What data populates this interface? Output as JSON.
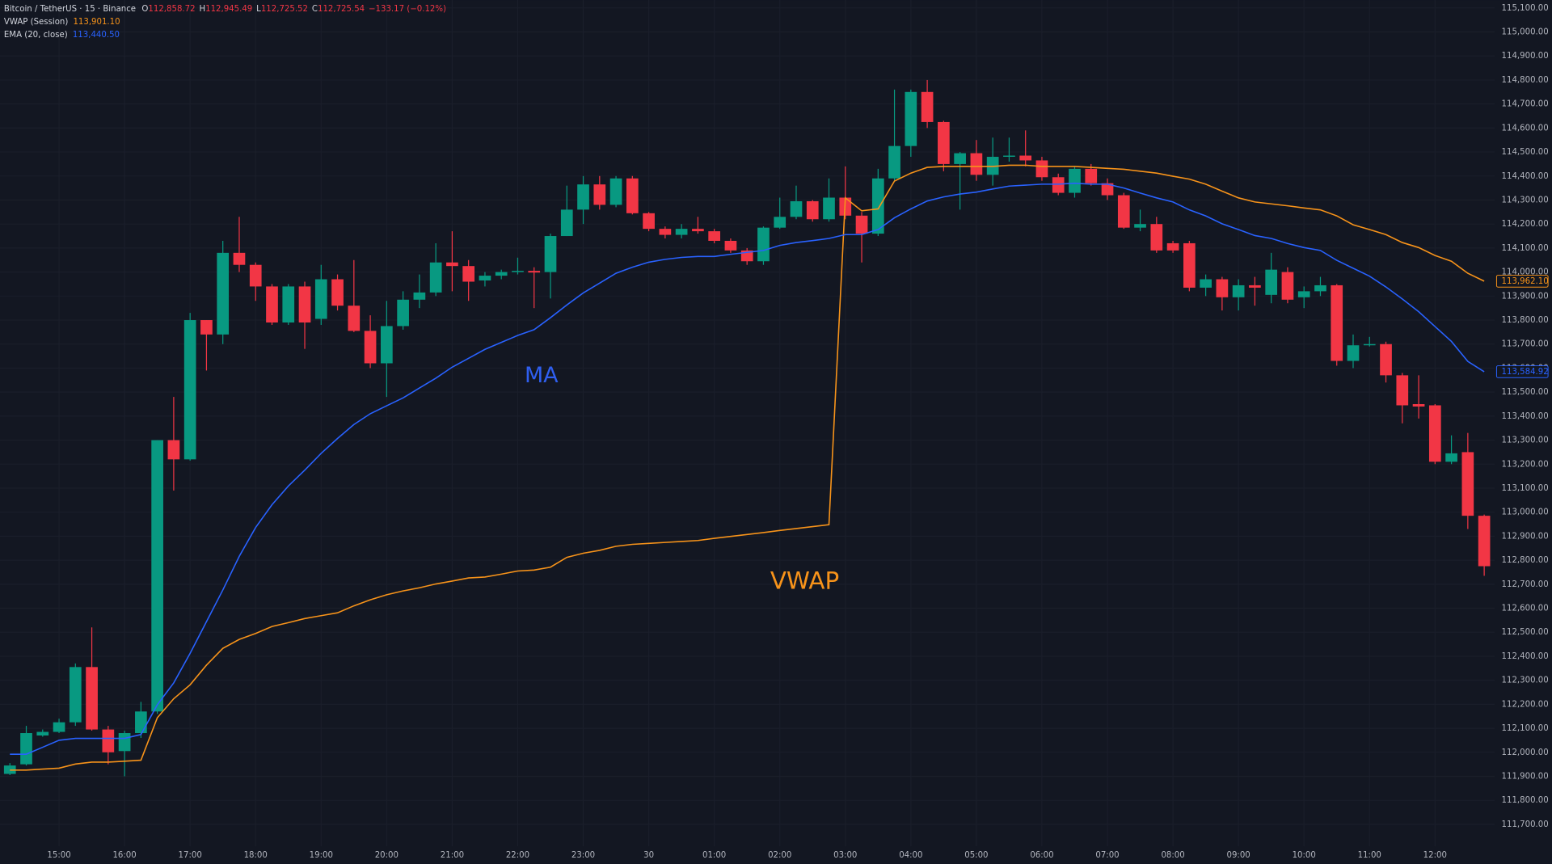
{
  "chart_data": {
    "type": "candlestick",
    "title": "Bitcoin / TetherUS · 15 · Binance",
    "ohlc": [
      {
        "key": "O",
        "value": "112,858.72"
      },
      {
        "key": "H",
        "value": "112,945.49"
      },
      {
        "key": "L",
        "value": "112,725.52"
      },
      {
        "key": "C",
        "value": "112,725.54"
      }
    ],
    "change": "−133.17 (−0.12%)",
    "up_color": "#089981",
    "down_color": "#f23645",
    "grid": true,
    "categories": [
      null,
      null,
      null,
      "15:00",
      null,
      null,
      null,
      "16:00",
      null,
      null,
      null,
      "17:00",
      null,
      null,
      null,
      "18:00",
      null,
      null,
      null,
      "19:00",
      null,
      null,
      null,
      "20:00",
      null,
      null,
      null,
      "21:00",
      null,
      null,
      null,
      "22:00",
      null,
      null,
      null,
      "23:00",
      null,
      null,
      null,
      "30",
      null,
      null,
      null,
      "01:00",
      null,
      null,
      null,
      "02:00",
      null,
      null,
      null,
      "03:00",
      null,
      null,
      null,
      "04:00",
      null,
      null,
      null,
      "05:00",
      null,
      null,
      null,
      "06:00",
      null,
      null,
      null,
      "07:00",
      null,
      null,
      null,
      "08:00",
      null,
      null,
      null,
      "09:00",
      null,
      null,
      null,
      "10:00",
      null,
      null,
      null,
      "11:00",
      null,
      null,
      null,
      "12:00",
      null,
      null,
      null
    ],
    "open": [
      111910,
      111950,
      112070,
      112085,
      112125,
      112355,
      112095,
      112005,
      112080,
      112170,
      113300,
      113220,
      113800,
      113740,
      114080,
      114030,
      113940,
      113790,
      113940,
      113805,
      113970,
      113860,
      113755,
      113620,
      113775,
      113885,
      113915,
      114040,
      114025,
      113965,
      113985,
      114000,
      114005,
      114000,
      114150,
      114260,
      114365,
      114280,
      114390,
      114245,
      114180,
      114155,
      114180,
      114170,
      114130,
      114090,
      114045,
      114185,
      114230,
      114295,
      114220,
      114310,
      114235,
      114160,
      114390,
      114525,
      114750,
      114625,
      114450,
      114495,
      114405,
      114480,
      114485,
      114465,
      114395,
      114330,
      114430,
      114370,
      114320,
      114185,
      114200,
      114120,
      114120,
      113935,
      113970,
      113895,
      113945,
      113905,
      114000,
      113895,
      113920,
      113945,
      113630,
      113695,
      113700,
      113570,
      113450,
      113445,
      113210,
      113250,
      112985
    ],
    "high": [
      111955,
      112110,
      112095,
      112140,
      112370,
      112520,
      112110,
      112090,
      112210,
      113300,
      113480,
      113830,
      113800,
      114130,
      114230,
      114040,
      113950,
      113950,
      113960,
      114030,
      113990,
      114050,
      113820,
      113880,
      113920,
      113990,
      114120,
      114170,
      114050,
      114000,
      114010,
      114060,
      114020,
      114160,
      114360,
      114400,
      114400,
      114400,
      114400,
      114250,
      114190,
      114200,
      114230,
      114180,
      114140,
      114100,
      114190,
      114310,
      114360,
      114300,
      114390,
      114440,
      114250,
      114430,
      114760,
      114760,
      114800,
      114630,
      114500,
      114550,
      114560,
      114560,
      114590,
      114480,
      114410,
      114440,
      114450,
      114390,
      114330,
      114260,
      114230,
      114130,
      114130,
      113990,
      113980,
      113970,
      113980,
      114080,
      114020,
      113940,
      113980,
      113950,
      113740,
      113730,
      113710,
      113580,
      113570,
      113450,
      113320,
      113330,
      112990
    ],
    "low": [
      111905,
      111945,
      112065,
      112080,
      112110,
      112090,
      111950,
      111900,
      112060,
      112160,
      113090,
      113215,
      113590,
      113700,
      114000,
      113880,
      113780,
      113780,
      113680,
      113780,
      113840,
      113750,
      113600,
      113480,
      113760,
      113850,
      113900,
      113920,
      113880,
      113940,
      113970,
      113990,
      113850,
      113890,
      114150,
      114200,
      114260,
      114270,
      114240,
      114170,
      114140,
      114140,
      114160,
      114120,
      114080,
      114030,
      114030,
      114180,
      114220,
      114210,
      114210,
      114220,
      114040,
      114150,
      114380,
      114480,
      114600,
      114420,
      114260,
      114380,
      114360,
      114460,
      114440,
      114380,
      114320,
      114310,
      114360,
      114300,
      114180,
      114170,
      114080,
      114080,
      113920,
      113900,
      113840,
      113840,
      113860,
      113870,
      113870,
      113850,
      113900,
      113610,
      113600,
      113690,
      113540,
      113370,
      113390,
      113200,
      113200,
      112930,
      112735
    ],
    "close": [
      111945,
      112080,
      112085,
      112125,
      112355,
      112095,
      112000,
      112080,
      112170,
      113300,
      113220,
      113800,
      113740,
      114080,
      114030,
      113940,
      113790,
      113940,
      113790,
      113970,
      113860,
      113755,
      113620,
      113775,
      113885,
      113915,
      114040,
      114025,
      113960,
      113985,
      114000,
      114005,
      113998,
      114150,
      114260,
      114365,
      114280,
      114390,
      114245,
      114180,
      114155,
      114180,
      114170,
      114130,
      114090,
      114045,
      114185,
      114230,
      114295,
      114220,
      114310,
      114235,
      114160,
      114390,
      114525,
      114750,
      114625,
      114450,
      114495,
      114405,
      114480,
      114485,
      114465,
      114395,
      114330,
      114430,
      114370,
      114320,
      114185,
      114200,
      114090,
      114090,
      113935,
      113970,
      113895,
      113945,
      113935,
      114010,
      113885,
      113920,
      113945,
      113630,
      113695,
      113700,
      113570,
      113445,
      113440,
      113210,
      113245,
      112985,
      112775
    ],
    "series": [
      {
        "name": "VWAP (Session)",
        "color": "#f7931a",
        "legend_value": "113,901.10",
        "last_label": "113,962.10",
        "values": [
          111926,
          111926,
          111930,
          111934,
          111951,
          111959,
          111959,
          111963,
          111967,
          112144,
          112223,
          112281,
          112363,
          112433,
          112470,
          112495,
          112524,
          112540,
          112557,
          112569,
          112581,
          112610,
          112635,
          112656,
          112672,
          112685,
          112701,
          112713,
          112726,
          112730,
          112742,
          112755,
          112759,
          112771,
          112812,
          112829,
          112841,
          112858,
          112866,
          112870,
          112874,
          112878,
          112882,
          112891,
          112899,
          112907,
          112915,
          112924,
          112932,
          112940,
          112948,
          114309,
          114255,
          114263,
          114379,
          114412,
          114436,
          114440,
          114440,
          114440,
          114440,
          114445,
          114445,
          114440,
          114440,
          114440,
          114436,
          114432,
          114428,
          114420,
          114412,
          114399,
          114387,
          114366,
          114337,
          114309,
          114292,
          114284,
          114276,
          114267,
          114259,
          114234,
          114197,
          114177,
          114156,
          114123,
          114102,
          114069,
          114045,
          113995,
          113962
        ]
      },
      {
        "name": "EMA (20, close)",
        "color": "#2962ff",
        "legend_value": "113,440.50",
        "last_label": "113,584.92",
        "values": [
          111992,
          111992,
          112021,
          112050,
          112058,
          112058,
          112058,
          112058,
          112074,
          112198,
          112289,
          112412,
          112544,
          112676,
          112816,
          112936,
          113031,
          113109,
          113175,
          113245,
          113307,
          113365,
          113410,
          113443,
          113476,
          113517,
          113558,
          113604,
          113641,
          113678,
          113707,
          113736,
          113760,
          113810,
          113863,
          113913,
          113954,
          113995,
          114020,
          114041,
          114053,
          114061,
          114065,
          114065,
          114074,
          114082,
          114090,
          114111,
          114123,
          114131,
          114140,
          114156,
          114156,
          114177,
          114226,
          114263,
          114296,
          114313,
          114325,
          114333,
          114346,
          114358,
          114362,
          114366,
          114366,
          114370,
          114366,
          114366,
          114350,
          114329,
          114309,
          114292,
          114259,
          114234,
          114201,
          114177,
          114152,
          114140,
          114119,
          114102,
          114090,
          114049,
          114016,
          113983,
          113938,
          113888,
          113835,
          113773,
          113711,
          113628,
          113585
        ]
      }
    ],
    "annotations": [
      "MA",
      "VWAP"
    ],
    "ylim": [
      111609,
      115133
    ],
    "yticks": [
      {
        "value": 111700,
        "label": "111,700.00"
      },
      {
        "value": 111800,
        "label": "111,800.00"
      },
      {
        "value": 111900,
        "label": "111,900.00"
      },
      {
        "value": 112000,
        "label": "112,000.00"
      },
      {
        "value": 112100,
        "label": "112,100.00"
      },
      {
        "value": 112200,
        "label": "112,200.00"
      },
      {
        "value": 112300,
        "label": "112,300.00"
      },
      {
        "value": 112400,
        "label": "112,400.00"
      },
      {
        "value": 112500,
        "label": "112,500.00"
      },
      {
        "value": 112600,
        "label": "112,600.00"
      },
      {
        "value": 112700,
        "label": "112,700.00"
      },
      {
        "value": 112800,
        "label": "112,800.00"
      },
      {
        "value": 112900,
        "label": "112,900.00"
      },
      {
        "value": 113000,
        "label": "113,000.00"
      },
      {
        "value": 113100,
        "label": "113,100.00"
      },
      {
        "value": 113200,
        "label": "113,200.00"
      },
      {
        "value": 113300,
        "label": "113,300.00"
      },
      {
        "value": 113400,
        "label": "113,400.00"
      },
      {
        "value": 113500,
        "label": "113,500.00"
      },
      {
        "value": 113600,
        "label": "113,600.00"
      },
      {
        "value": 113700,
        "label": "113,700.00"
      },
      {
        "value": 113800,
        "label": "113,800.00"
      },
      {
        "value": 113900,
        "label": "113,900.00"
      },
      {
        "value": 114000,
        "label": "114,000.00"
      },
      {
        "value": 114100,
        "label": "114,100.00"
      },
      {
        "value": 114200,
        "label": "114,200.00"
      },
      {
        "value": 114300,
        "label": "114,300.00"
      },
      {
        "value": 114400,
        "label": "114,400.00"
      },
      {
        "value": 114500,
        "label": "114,500.00"
      },
      {
        "value": 114600,
        "label": "114,600.00"
      },
      {
        "value": 114700,
        "label": "114,700.00"
      },
      {
        "value": 114800,
        "label": "114,800.00"
      },
      {
        "value": 114900,
        "label": "114,900.00"
      },
      {
        "value": 115000,
        "label": "115,000.00"
      },
      {
        "value": 115100,
        "label": "115,100.00"
      }
    ]
  }
}
